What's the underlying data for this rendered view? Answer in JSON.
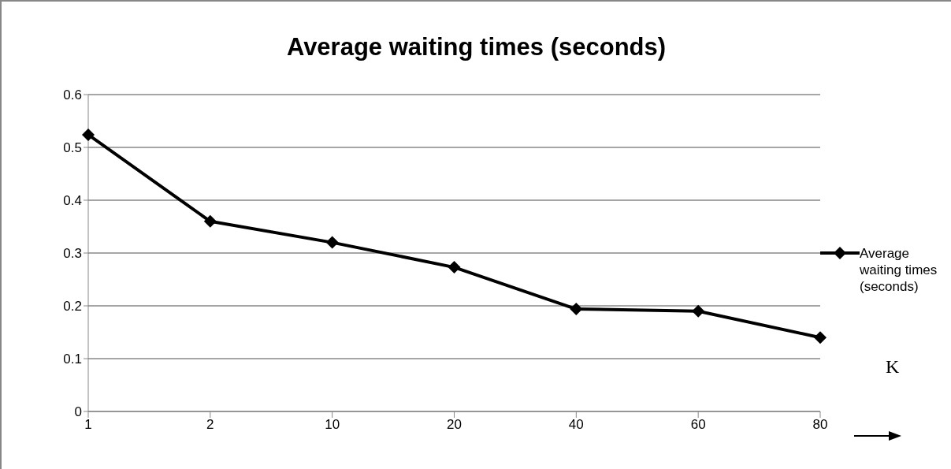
{
  "chart_data": {
    "type": "line",
    "title": "Average waiting times (seconds)",
    "xlabel": "K",
    "categories": [
      "1",
      "2",
      "10",
      "20",
      "40",
      "60",
      "80"
    ],
    "series": [
      {
        "name": "Average waiting times (seconds)",
        "color": "#000000",
        "values": [
          0.524,
          0.36,
          0.32,
          0.273,
          0.194,
          0.19,
          0.14
        ]
      }
    ],
    "ylim": [
      0,
      0.6
    ],
    "yticks": [
      0,
      0.1,
      0.2,
      0.3,
      0.4,
      0.5,
      0.6
    ],
    "grid": "y",
    "legend": "right",
    "marker": "diamond",
    "line_style": "solid"
  }
}
